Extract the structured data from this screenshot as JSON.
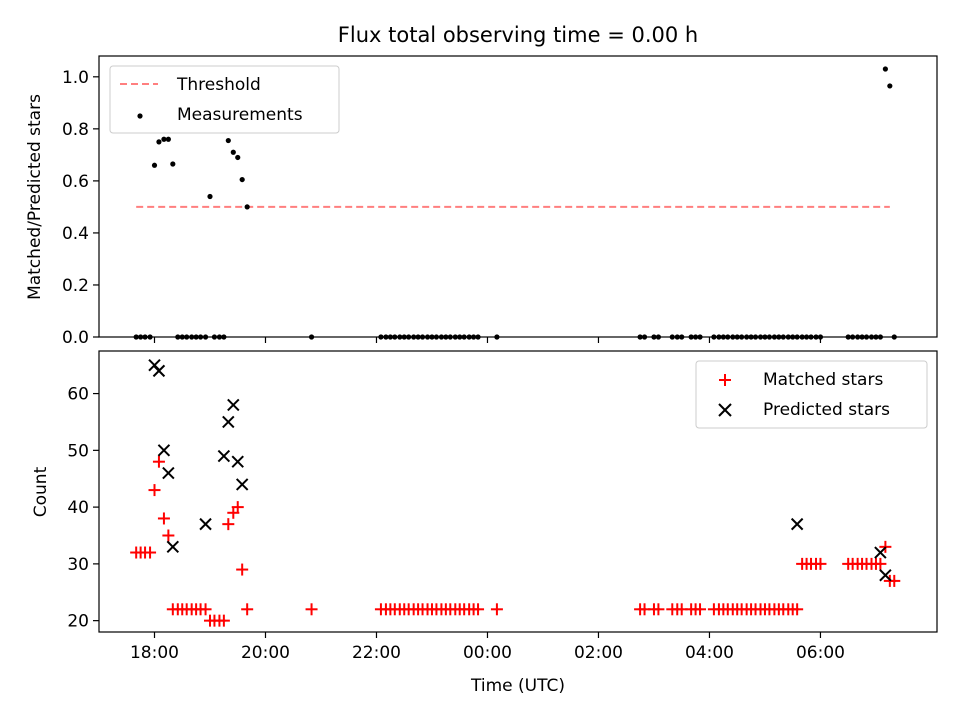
{
  "figure": {
    "title": "Flux total observing time = 0.00 h"
  },
  "chart_data": [
    {
      "type": "scatter",
      "panel": "top",
      "title": "Flux total observing time = 0.00 h",
      "xlabel": "",
      "ylabel": "Matched/Predicted stars",
      "xlim_hours": [
        17.0,
        32.1
      ],
      "ylim": [
        0.0,
        1.08
      ],
      "yticks": [
        0.0,
        0.2,
        0.4,
        0.6,
        0.8,
        1.0
      ],
      "ytick_labels": [
        "0.0",
        "0.2",
        "0.4",
        "0.6",
        "0.8",
        "1.0"
      ],
      "legend": {
        "position": "upper-left",
        "entries": [
          "Threshold",
          "Measurements"
        ]
      },
      "threshold": {
        "name": "Threshold",
        "value": 0.5,
        "x_start": 17.67,
        "x_end": 31.25,
        "color": "#ff7f7f",
        "style": "dashed"
      },
      "measurements": {
        "name": "Measurements",
        "color": "#000000",
        "x": [
          17.67,
          17.75,
          17.83,
          17.92,
          18.0,
          18.08,
          18.17,
          18.25,
          18.33,
          18.42,
          18.5,
          18.58,
          18.67,
          18.75,
          18.83,
          18.92,
          19.0,
          19.08,
          19.17,
          19.25,
          19.33,
          19.42,
          19.5,
          19.58,
          19.67,
          20.83,
          22.08,
          22.17,
          22.25,
          22.33,
          22.42,
          22.5,
          22.58,
          22.67,
          22.75,
          22.83,
          22.92,
          23.0,
          23.08,
          23.17,
          23.25,
          23.33,
          23.42,
          23.5,
          23.58,
          23.67,
          23.75,
          23.83,
          24.17,
          26.75,
          26.83,
          27.0,
          27.08,
          27.33,
          27.42,
          27.5,
          27.67,
          27.75,
          27.83,
          28.08,
          28.17,
          28.25,
          28.33,
          28.42,
          28.5,
          28.58,
          28.67,
          28.75,
          28.83,
          28.92,
          29.0,
          29.08,
          29.17,
          29.25,
          29.33,
          29.42,
          29.5,
          29.58,
          29.67,
          29.75,
          29.83,
          29.92,
          30.0,
          30.5,
          30.58,
          30.67,
          30.75,
          30.83,
          30.92,
          31.0,
          31.08,
          31.17,
          31.25,
          31.33
        ],
        "y": [
          0,
          0,
          0,
          0,
          0.66,
          0.75,
          0.76,
          0.76,
          0.665,
          0,
          0,
          0,
          0,
          0,
          0,
          0,
          0.54,
          0,
          0,
          0,
          0.755,
          0.71,
          0.69,
          0.605,
          0.5,
          0,
          0,
          0,
          0,
          0,
          0,
          0,
          0,
          0,
          0,
          0,
          0,
          0,
          0,
          0,
          0,
          0,
          0,
          0,
          0,
          0,
          0,
          0,
          0,
          0,
          0,
          0,
          0,
          0,
          0,
          0,
          0,
          0,
          0,
          0,
          0,
          0,
          0,
          0,
          0,
          0,
          0,
          0,
          0,
          0,
          0,
          0,
          0,
          0,
          0,
          0,
          0,
          0,
          0,
          0,
          0,
          0,
          0,
          0,
          0,
          0,
          0,
          0,
          0,
          0,
          0,
          1.03,
          0.965,
          0
        ]
      }
    },
    {
      "type": "scatter",
      "panel": "bottom",
      "xlabel": "Time (UTC)",
      "ylabel": "Count",
      "xlim_hours": [
        17.0,
        32.1
      ],
      "ylim": [
        18,
        67.5
      ],
      "yticks": [
        20,
        30,
        40,
        50,
        60
      ],
      "ytick_labels": [
        "20",
        "30",
        "40",
        "50",
        "60"
      ],
      "xticks_hours": [
        18,
        20,
        22,
        24,
        26,
        28,
        30
      ],
      "xtick_labels": [
        "18:00",
        "20:00",
        "22:00",
        "00:00",
        "02:00",
        "04:00",
        "06:00"
      ],
      "legend": {
        "position": "upper-right",
        "entries": [
          "Matched stars",
          "Predicted stars"
        ]
      },
      "matched": {
        "name": "Matched stars",
        "color": "#ff0000",
        "marker": "plus",
        "x": [
          17.67,
          17.75,
          17.83,
          17.92,
          18.0,
          18.08,
          18.17,
          18.25,
          18.33,
          18.42,
          18.5,
          18.58,
          18.67,
          18.75,
          18.83,
          18.92,
          19.0,
          19.08,
          19.17,
          19.25,
          19.33,
          19.42,
          19.5,
          19.58,
          19.67,
          20.83,
          22.08,
          22.17,
          22.25,
          22.33,
          22.42,
          22.5,
          22.58,
          22.67,
          22.75,
          22.83,
          22.92,
          23.0,
          23.08,
          23.17,
          23.25,
          23.33,
          23.42,
          23.5,
          23.58,
          23.67,
          23.75,
          23.83,
          24.17,
          26.75,
          26.83,
          27.0,
          27.08,
          27.33,
          27.42,
          27.5,
          27.67,
          27.75,
          27.83,
          28.08,
          28.17,
          28.25,
          28.33,
          28.42,
          28.5,
          28.58,
          28.67,
          28.75,
          28.83,
          28.92,
          29.0,
          29.08,
          29.17,
          29.25,
          29.33,
          29.42,
          29.5,
          29.58,
          29.67,
          29.75,
          29.83,
          29.92,
          30.0,
          30.5,
          30.58,
          30.67,
          30.75,
          30.83,
          30.92,
          31.0,
          31.08,
          31.17,
          31.25,
          31.33
        ],
        "y": [
          32,
          32,
          32,
          32,
          43,
          48,
          38,
          35,
          22,
          22,
          22,
          22,
          22,
          22,
          22,
          22,
          20,
          20,
          20,
          20,
          37,
          39,
          40,
          29,
          22,
          22,
          22,
          22,
          22,
          22,
          22,
          22,
          22,
          22,
          22,
          22,
          22,
          22,
          22,
          22,
          22,
          22,
          22,
          22,
          22,
          22,
          22,
          22,
          22,
          22,
          22,
          22,
          22,
          22,
          22,
          22,
          22,
          22,
          22,
          22,
          22,
          22,
          22,
          22,
          22,
          22,
          22,
          22,
          22,
          22,
          22,
          22,
          22,
          22,
          22,
          22,
          22,
          22,
          30,
          30,
          30,
          30,
          30,
          30,
          30,
          30,
          30,
          30,
          30,
          30,
          30,
          33,
          27,
          27
        ]
      },
      "predicted": {
        "name": "Predicted stars",
        "color": "#000000",
        "marker": "x",
        "x": [
          18.0,
          18.08,
          18.17,
          18.25,
          18.33,
          18.92,
          19.25,
          19.33,
          19.42,
          19.5,
          19.58,
          29.58,
          31.08,
          31.17
        ],
        "y": [
          65,
          64,
          50,
          46,
          33,
          37,
          49,
          55,
          58,
          48,
          44,
          37,
          32,
          28
        ]
      }
    }
  ]
}
